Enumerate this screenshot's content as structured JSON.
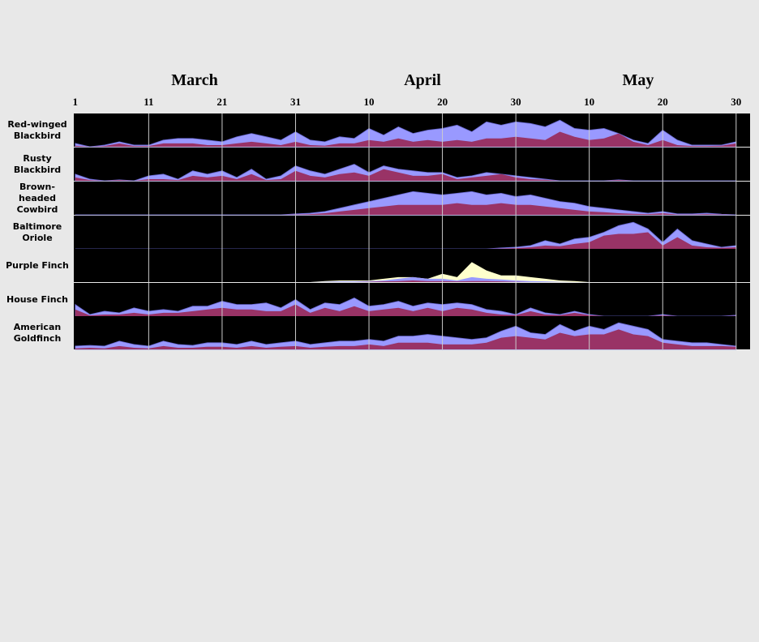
{
  "chart_data": {
    "type": "area",
    "months": [
      "March",
      "April",
      "May"
    ],
    "xlim": [
      0.8,
      92.9
    ],
    "xticks": [
      1,
      11,
      21,
      31,
      {
        "value": 41,
        "label": "10"
      },
      {
        "value": 51,
        "label": "20"
      },
      {
        "value": 61,
        "label": "30"
      },
      {
        "value": 71,
        "label": "10"
      },
      {
        "value": 81,
        "label": "20"
      },
      {
        "value": 91,
        "label": "30"
      }
    ],
    "grid": true,
    "ylim": [
      0,
      100
    ],
    "x": [
      1,
      3,
      5,
      7,
      9,
      11,
      13,
      15,
      17,
      19,
      21,
      23,
      25,
      27,
      29,
      31,
      33,
      35,
      37,
      39,
      41,
      43,
      45,
      47,
      49,
      51,
      53,
      55,
      57,
      59,
      61,
      63,
      65,
      67,
      69,
      71,
      73,
      75,
      77,
      79,
      81,
      83,
      85,
      87,
      89,
      91
    ],
    "rows": [
      {
        "name": "Red-winged Blackbird",
        "series": [
          {
            "color": "#9999ff",
            "values": [
              10,
              0,
              5,
              15,
              5,
              5,
              20,
              25,
              25,
              20,
              15,
              30,
              40,
              30,
              20,
              45,
              20,
              15,
              30,
              25,
              55,
              35,
              60,
              40,
              50,
              55,
              65,
              45,
              75,
              65,
              75,
              70,
              60,
              80,
              55,
              50,
              55,
              40,
              20,
              10,
              50,
              20,
              5,
              5,
              5,
              15
            ]
          },
          {
            "color": "#993366",
            "values": [
              3,
              0,
              2,
              10,
              2,
              2,
              10,
              10,
              10,
              5,
              5,
              10,
              15,
              10,
              5,
              15,
              5,
              3,
              10,
              10,
              20,
              15,
              25,
              15,
              20,
              15,
              20,
              15,
              25,
              25,
              30,
              25,
              20,
              45,
              30,
              20,
              25,
              40,
              15,
              5,
              20,
              5,
              2,
              2,
              3,
              10
            ]
          }
        ]
      },
      {
        "name": "Rusty Blackbird",
        "series": [
          {
            "color": "#9999ff",
            "values": [
              20,
              5,
              0,
              3,
              0,
              15,
              20,
              5,
              30,
              20,
              30,
              10,
              35,
              5,
              15,
              45,
              30,
              20,
              35,
              50,
              25,
              45,
              35,
              30,
              25,
              25,
              10,
              15,
              25,
              20,
              15,
              10,
              5,
              0,
              0,
              0,
              0,
              3,
              0,
              0,
              0,
              0,
              0,
              0,
              0,
              0
            ]
          },
          {
            "color": "#993366",
            "values": [
              10,
              2,
              0,
              2,
              0,
              5,
              5,
              2,
              15,
              10,
              15,
              5,
              20,
              2,
              5,
              30,
              15,
              10,
              20,
              25,
              15,
              35,
              25,
              15,
              15,
              20,
              5,
              10,
              15,
              20,
              10,
              5,
              3,
              0,
              0,
              0,
              0,
              2,
              0,
              0,
              0,
              0,
              0,
              0,
              0,
              0
            ]
          }
        ]
      },
      {
        "name": "Brown-headed Cowbird",
        "series": [
          {
            "color": "#9999ff",
            "values": [
              0,
              0,
              0,
              0,
              0,
              0,
              0,
              0,
              0,
              0,
              0,
              0,
              0,
              0,
              0,
              3,
              5,
              10,
              20,
              30,
              40,
              50,
              60,
              70,
              65,
              60,
              65,
              70,
              60,
              65,
              55,
              60,
              50,
              40,
              35,
              25,
              20,
              15,
              10,
              5,
              10,
              3,
              3,
              5,
              2,
              0
            ]
          },
          {
            "color": "#993366",
            "values": [
              0,
              0,
              0,
              0,
              0,
              0,
              0,
              0,
              0,
              0,
              0,
              0,
              0,
              0,
              0,
              1,
              2,
              5,
              10,
              15,
              20,
              25,
              30,
              30,
              30,
              30,
              35,
              30,
              30,
              35,
              30,
              30,
              25,
              20,
              15,
              10,
              8,
              5,
              3,
              2,
              5,
              1,
              1,
              2,
              1,
              0
            ]
          }
        ]
      },
      {
        "name": "Baltimore Oriole",
        "series": [
          {
            "color": "#9999ff",
            "values": [
              0,
              0,
              0,
              0,
              0,
              0,
              0,
              0,
              0,
              0,
              0,
              0,
              0,
              0,
              0,
              0,
              0,
              0,
              0,
              0,
              0,
              0,
              0,
              0,
              0,
              0,
              0,
              0,
              0,
              3,
              5,
              10,
              25,
              15,
              30,
              35,
              50,
              70,
              80,
              60,
              20,
              60,
              25,
              15,
              5,
              10
            ]
          },
          {
            "color": "#993366",
            "values": [
              0,
              0,
              0,
              0,
              0,
              0,
              0,
              0,
              0,
              0,
              0,
              0,
              0,
              0,
              0,
              0,
              0,
              0,
              0,
              0,
              0,
              0,
              0,
              0,
              0,
              0,
              0,
              0,
              0,
              1,
              2,
              5,
              10,
              8,
              15,
              20,
              40,
              45,
              45,
              50,
              10,
              35,
              10,
              5,
              3,
              5
            ]
          }
        ]
      },
      {
        "name": "Purple Finch",
        "series": [
          {
            "color": "#ffffcc",
            "values": [
              0,
              0,
              0,
              0,
              0,
              0,
              0,
              0,
              0,
              0,
              0,
              0,
              0,
              0,
              0,
              0,
              0,
              3,
              5,
              5,
              5,
              10,
              15,
              15,
              10,
              25,
              15,
              60,
              35,
              20,
              20,
              15,
              10,
              5,
              3,
              0,
              0,
              0,
              0,
              0,
              0,
              0,
              0,
              0,
              0,
              0
            ]
          },
          {
            "color": "#9999ff",
            "values": [
              0,
              0,
              0,
              0,
              0,
              0,
              0,
              0,
              0,
              0,
              0,
              0,
              0,
              0,
              0,
              0,
              0,
              1,
              2,
              2,
              3,
              5,
              10,
              15,
              10,
              10,
              5,
              15,
              10,
              8,
              5,
              3,
              2,
              1,
              0,
              0,
              0,
              0,
              0,
              0,
              0,
              0,
              0,
              0,
              0,
              0
            ]
          },
          {
            "color": "#993366",
            "values": [
              0,
              0,
              0,
              0,
              0,
              0,
              0,
              0,
              0,
              0,
              0,
              0,
              0,
              0,
              0,
              0,
              0,
              0,
              0,
              0,
              1,
              2,
              3,
              5,
              3,
              3,
              2,
              3,
              3,
              2,
              1,
              0,
              0,
              0,
              0,
              0,
              0,
              0,
              0,
              0,
              0,
              0,
              0,
              0,
              0,
              0
            ]
          }
        ]
      },
      {
        "name": "House Finch",
        "series": [
          {
            "color": "#9999ff",
            "values": [
              35,
              5,
              15,
              10,
              25,
              15,
              20,
              15,
              30,
              30,
              45,
              35,
              35,
              40,
              25,
              50,
              20,
              40,
              35,
              55,
              30,
              35,
              45,
              30,
              40,
              35,
              40,
              35,
              20,
              15,
              5,
              25,
              10,
              5,
              15,
              5,
              0,
              0,
              0,
              0,
              5,
              0,
              0,
              0,
              0,
              3
            ]
          },
          {
            "color": "#993366",
            "values": [
              20,
              2,
              5,
              5,
              10,
              5,
              10,
              10,
              15,
              20,
              25,
              20,
              20,
              15,
              15,
              35,
              10,
              25,
              15,
              30,
              15,
              20,
              25,
              15,
              25,
              15,
              25,
              20,
              10,
              5,
              3,
              15,
              5,
              3,
              10,
              3,
              0,
              0,
              0,
              0,
              2,
              0,
              0,
              0,
              0,
              1
            ]
          }
        ]
      },
      {
        "name": "American Goldfinch",
        "series": [
          {
            "color": "#9999ff",
            "values": [
              10,
              12,
              10,
              25,
              15,
              10,
              25,
              15,
              12,
              20,
              20,
              15,
              25,
              15,
              20,
              25,
              15,
              20,
              25,
              25,
              30,
              25,
              40,
              40,
              45,
              40,
              35,
              30,
              35,
              55,
              70,
              50,
              45,
              75,
              55,
              70,
              60,
              80,
              70,
              60,
              30,
              25,
              20,
              20,
              15,
              10
            ]
          },
          {
            "color": "#993366",
            "values": [
              3,
              5,
              3,
              10,
              5,
              3,
              10,
              5,
              5,
              8,
              8,
              5,
              10,
              5,
              8,
              10,
              5,
              8,
              10,
              10,
              15,
              10,
              20,
              20,
              20,
              15,
              15,
              15,
              20,
              35,
              40,
              35,
              30,
              50,
              40,
              45,
              45,
              60,
              45,
              40,
              20,
              15,
              10,
              10,
              10,
              8
            ]
          }
        ]
      }
    ]
  }
}
